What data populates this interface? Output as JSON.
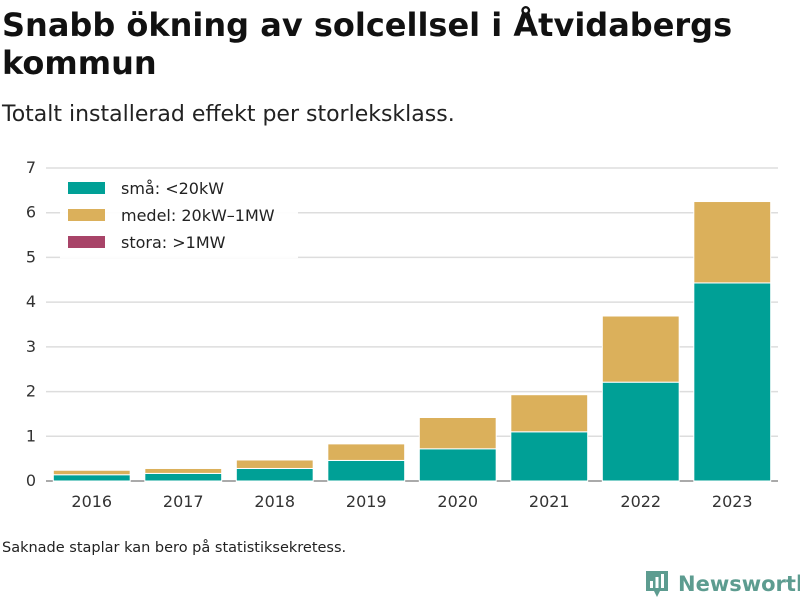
{
  "header": {
    "title": "Snabb ökning av solcellsel i Åtvidabergs kommun",
    "subtitle": "Totalt installerad effekt per storleksklass."
  },
  "footer": {
    "note": "Saknade staplar kan bero på statistiksekretess.",
    "brand": "Newsworthy",
    "brand_icon": "bar-chart-logo-icon",
    "brand_color": "#5d9c90"
  },
  "chart_data": {
    "type": "bar",
    "stacked": true,
    "title": "Snabb ökning av solcellsel i Åtvidabergs kommun",
    "subtitle": "Totalt installerad effekt per storleksklass.",
    "xlabel": "",
    "ylabel": "",
    "categories": [
      "2016",
      "2017",
      "2018",
      "2019",
      "2020",
      "2021",
      "2022",
      "2023"
    ],
    "yticks": [
      "0",
      "1",
      "2",
      "3",
      "4",
      "5",
      "6",
      "7"
    ],
    "ylim": [
      0,
      7
    ],
    "grid": true,
    "legend_position": "top-left",
    "series": [
      {
        "name": "små: <20kW",
        "color": "#00a096",
        "values": [
          0.14,
          0.17,
          0.28,
          0.46,
          0.72,
          1.1,
          2.21,
          4.43
        ]
      },
      {
        "name": "medel: 20kW–1MW",
        "color": "#dbb05b",
        "values": [
          0.1,
          0.11,
          0.19,
          0.37,
          0.7,
          0.83,
          1.48,
          1.82
        ]
      },
      {
        "name": "stora: >1MW",
        "color": "#a84468",
        "values": [
          0,
          0,
          0,
          0,
          0,
          0,
          0,
          0
        ]
      }
    ]
  }
}
